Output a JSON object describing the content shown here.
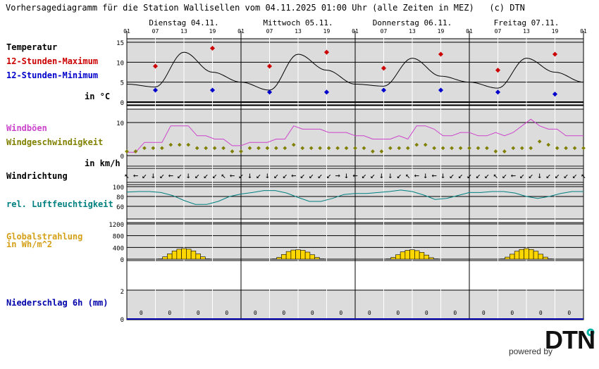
{
  "title": "Vorhersagediagramm für die Station Wallisellen vom 04.11.2025 01:00 Uhr (alle Zeiten in MEZ)   (c) DTN",
  "days": [
    "Dienstag 04.11.",
    "Mittwoch 05.11.",
    "Donnerstag 06.11.",
    "Freitag 07.11."
  ],
  "hour_ticks": [
    "01",
    "07",
    "13",
    "19",
    "01",
    "07",
    "13",
    "19",
    "01",
    "07",
    "13",
    "19",
    "01",
    "07",
    "13",
    "19",
    "01"
  ],
  "labels": {
    "temperature": "Temperatur",
    "max12": "12-Stunden-Maximum",
    "min12": "12-Stunden-Minimum",
    "temp_unit": "in °C",
    "gusts": "Windböen",
    "wind_speed": "Windgeschwindigkeit",
    "wind_unit": "in km/h",
    "wind_dir": "Windrichtung",
    "humidity": "rel. Luftfeuchtigkeit",
    "radiation_1": "Globalstrahlung",
    "radiation_2": "in Wh/m^2",
    "precip": "Niederschlag 6h (mm)"
  },
  "colors": {
    "temperature": "#000000",
    "max": "#cc0000",
    "min": "#0000cc",
    "gusts": "#cc44cc",
    "wind": "#808000",
    "humidity": "#008080",
    "radiation": "#ffd700",
    "radiation_label": "#d4a017",
    "precip": "#0000aa",
    "panel": "#dcdcdc"
  },
  "footer": {
    "powered": "powered by",
    "logo": "DTN"
  },
  "chart_data": [
    {
      "type": "line",
      "name": "Temperatur",
      "x_hours": [
        0,
        6,
        12,
        18,
        24,
        30,
        36,
        42,
        48,
        54,
        60,
        66,
        72,
        78,
        84,
        90,
        96
      ],
      "values": [
        4.5,
        3.8,
        12.5,
        7.5,
        5.0,
        3.0,
        12.0,
        8.0,
        4.5,
        4.0,
        11.0,
        6.5,
        5.0,
        3.5,
        11.0,
        7.5,
        5.0
      ],
      "max12": [
        {
          "x": 6,
          "v": 9
        },
        {
          "x": 18,
          "v": 13.5
        },
        {
          "x": 30,
          "v": 9
        },
        {
          "x": 42,
          "v": 12.5
        },
        {
          "x": 54,
          "v": 8.5
        },
        {
          "x": 66,
          "v": 12
        },
        {
          "x": 78,
          "v": 8
        },
        {
          "x": 90,
          "v": 12
        }
      ],
      "min12": [
        {
          "x": 6,
          "v": 3
        },
        {
          "x": 18,
          "v": 3
        },
        {
          "x": 30,
          "v": 2.5
        },
        {
          "x": 42,
          "v": 2.5
        },
        {
          "x": 54,
          "v": 3
        },
        {
          "x": 66,
          "v": 3
        },
        {
          "x": 78,
          "v": 2.5
        },
        {
          "x": 90,
          "v": 2
        }
      ],
      "ylim": [
        0,
        15
      ],
      "yticks": [
        "0",
        "5",
        "10",
        "15"
      ]
    },
    {
      "type": "line",
      "name": "Windböen / Windgeschwindigkeit",
      "gust_values": [
        1,
        1,
        4,
        4,
        4,
        9,
        9,
        9,
        6,
        6,
        5,
        5,
        3,
        3,
        4,
        4,
        4,
        5,
        5,
        9,
        8,
        8,
        8,
        7,
        7,
        7,
        6,
        6,
        5,
        5,
        5,
        6,
        5,
        9,
        9,
        8,
        6,
        6,
        7,
        7,
        6,
        6,
        7,
        6,
        7,
        9,
        11,
        9,
        8,
        8,
        6,
        6,
        6
      ],
      "wind_values": [
        0,
        0,
        1,
        1,
        1,
        2,
        2,
        2,
        1,
        1,
        1,
        1,
        0,
        0,
        1,
        1,
        1,
        1,
        1,
        2,
        1,
        1,
        1,
        1,
        1,
        1,
        1,
        1,
        0,
        0,
        1,
        1,
        1,
        2,
        2,
        1,
        1,
        1,
        1,
        1,
        1,
        1,
        0,
        0,
        1,
        1,
        1,
        3,
        2,
        1,
        1,
        1,
        1
      ],
      "ylim": [
        0,
        15
      ],
      "yticks": [
        "0",
        "10"
      ]
    },
    {
      "type": "line",
      "name": "rel. Luftfeuchtigkeit",
      "values": [
        89,
        90,
        90,
        88,
        82,
        72,
        64,
        64,
        70,
        80,
        85,
        88,
        92,
        92,
        87,
        78,
        70,
        70,
        76,
        84,
        86,
        86,
        88,
        90,
        93,
        90,
        83,
        74,
        76,
        82,
        88,
        88,
        90,
        90,
        87,
        80,
        76,
        80,
        86,
        90,
        90
      ],
      "ylim": [
        40,
        100
      ],
      "yticks": [
        "60",
        "80",
        "100"
      ]
    },
    {
      "type": "bar",
      "name": "Globalstrahlung",
      "day_values": [
        [
          10,
          80,
          180,
          280,
          340,
          360,
          340,
          280,
          180,
          80,
          10
        ],
        [
          10,
          60,
          160,
          260,
          310,
          320,
          300,
          240,
          150,
          60,
          10
        ],
        [
          10,
          60,
          150,
          250,
          300,
          320,
          290,
          230,
          140,
          50,
          10
        ],
        [
          10,
          70,
          170,
          270,
          330,
          360,
          330,
          270,
          170,
          70,
          10
        ]
      ],
      "ylim": [
        0,
        1200
      ],
      "yticks": [
        "0",
        "400",
        "800",
        "1200"
      ]
    },
    {
      "type": "bar",
      "name": "Niederschlag 6h",
      "values": [
        0,
        0,
        0,
        0,
        0,
        0,
        0,
        0,
        0,
        0,
        0,
        0,
        0,
        0,
        0,
        0
      ],
      "value_labels": [
        "0",
        "0",
        "0",
        "0",
        "0",
        "0",
        "0",
        "0",
        "0",
        "0",
        "0",
        "0",
        "0",
        "0",
        "0",
        "0"
      ],
      "ylim": [
        0,
        3
      ],
      "yticks": [
        "0",
        "2"
      ]
    }
  ]
}
